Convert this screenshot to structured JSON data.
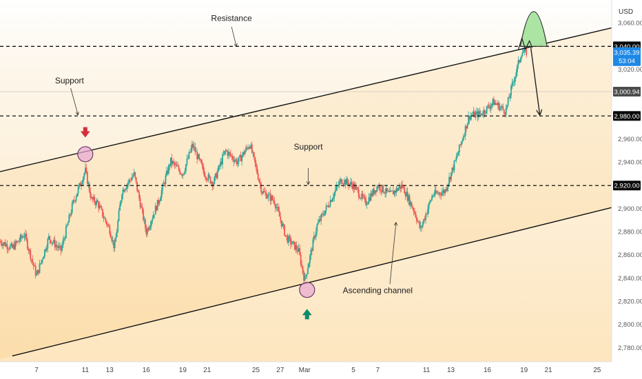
{
  "chart_data": {
    "type": "candlestick",
    "currency": "USD",
    "y_ticks": [
      3060,
      3020,
      2960,
      2940,
      2900,
      2880,
      2860,
      2840,
      2820,
      2800,
      2780
    ],
    "y_tick_labels": [
      "3,060.00",
      "3,020.00",
      "2,960.00",
      "2,940.00",
      "2,900.00",
      "2,880.00",
      "2,860.00",
      "2,840.00",
      "2,820.00",
      "2,800.00",
      "2,780.00"
    ],
    "x_ticks": [
      {
        "label": "7",
        "x": 3
      },
      {
        "label": "11",
        "x": 7
      },
      {
        "label": "13",
        "x": 9
      },
      {
        "label": "16",
        "x": 12
      },
      {
        "label": "19",
        "x": 15
      },
      {
        "label": "21",
        "x": 17
      },
      {
        "label": "25",
        "x": 21
      },
      {
        "label": "27",
        "x": 23
      },
      {
        "label": "Mar",
        "x": 25
      },
      {
        "label": "5",
        "x": 29
      },
      {
        "label": "7",
        "x": 31
      },
      {
        "label": "11",
        "x": 35
      },
      {
        "label": "13",
        "x": 37
      },
      {
        "label": "16",
        "x": 40
      },
      {
        "label": "19",
        "x": 43
      },
      {
        "label": "21",
        "x": 45
      },
      {
        "label": "25",
        "x": 49
      }
    ],
    "x_range": [
      0.0,
      50.2
    ],
    "y_range": [
      2768,
      3080
    ],
    "price_path": [
      [
        0.0,
        2872
      ],
      [
        1.0,
        2866
      ],
      [
        2.0,
        2878
      ],
      [
        3.0,
        2842
      ],
      [
        4.0,
        2875
      ],
      [
        5.0,
        2864
      ],
      [
        6.0,
        2905
      ],
      [
        7.0,
        2933
      ],
      [
        7.5,
        2908
      ],
      [
        8.0,
        2905
      ],
      [
        8.5,
        2893
      ],
      [
        9.0,
        2882
      ],
      [
        9.4,
        2866
      ],
      [
        10.0,
        2915
      ],
      [
        11.0,
        2930
      ],
      [
        12.0,
        2880
      ],
      [
        13.0,
        2906
      ],
      [
        14.0,
        2941
      ],
      [
        15.0,
        2930
      ],
      [
        15.8,
        2955
      ],
      [
        16.8,
        2930
      ],
      [
        17.5,
        2922
      ],
      [
        18.5,
        2950
      ],
      [
        19.5,
        2940
      ],
      [
        20.5,
        2956
      ],
      [
        21.5,
        2915
      ],
      [
        22.5,
        2907
      ],
      [
        23.5,
        2875
      ],
      [
        24.5,
        2864
      ],
      [
        25.0,
        2838
      ],
      [
        26.0,
        2885
      ],
      [
        27.0,
        2905
      ],
      [
        28.0,
        2925
      ],
      [
        29.0,
        2920
      ],
      [
        30.0,
        2905
      ],
      [
        31.0,
        2920
      ],
      [
        32.0,
        2912
      ],
      [
        33.0,
        2920
      ],
      [
        34.0,
        2898
      ],
      [
        34.5,
        2882
      ],
      [
        35.5,
        2912
      ],
      [
        36.5,
        2915
      ],
      [
        37.5,
        2945
      ],
      [
        38.5,
        2980
      ],
      [
        39.5,
        2982
      ],
      [
        40.5,
        2992
      ],
      [
        41.5,
        2984
      ],
      [
        42.0,
        3005
      ],
      [
        42.8,
        3035
      ],
      [
        43.2,
        3035
      ]
    ],
    "price_label": "3,035.39",
    "countdown": "53:04",
    "level_labels": [
      {
        "value": 3040,
        "text": "3,040.00"
      },
      {
        "value": 3000.94,
        "text": "3,000.94"
      },
      {
        "value": 2980,
        "text": "2,980.00"
      },
      {
        "value": 2920,
        "text": "2,920.00"
      }
    ],
    "horizontal_levels": [
      3040,
      2980,
      2920
    ],
    "reference_level": 3000.94,
    "channel": {
      "upper": [
        [
          0.0,
          2932
        ],
        [
          50.2,
          3056
        ]
      ],
      "lower": [
        [
          1.0,
          2773
        ],
        [
          50.2,
          2901
        ]
      ]
    },
    "projection": [
      [
        43.0,
        3040
      ],
      [
        44.3,
        2981
      ]
    ],
    "resistance_arc": {
      "from": [
        42.7,
        3040
      ],
      "to": [
        44.9,
        3040
      ],
      "peak": 3070
    },
    "touch_points": [
      [
        7.0,
        2947
      ],
      [
        25.2,
        2830
      ]
    ],
    "annotations": [
      {
        "text": "Resistance",
        "at": [
          19.0,
          3062
        ]
      },
      {
        "text": "Support",
        "at": [
          5.7,
          3008
        ]
      },
      {
        "text": "Support",
        "at": [
          25.3,
          2951
        ]
      },
      {
        "text": "Ascending channel",
        "at": [
          31.0,
          2827
        ]
      }
    ],
    "pointers": [
      {
        "from": [
          19.0,
          3057
        ],
        "to": [
          19.4,
          3040
        ]
      },
      {
        "from": [
          5.8,
          3004
        ],
        "to": [
          6.4,
          2981
        ]
      },
      {
        "from": [
          25.3,
          2935
        ],
        "to": [
          25.3,
          2921
        ]
      },
      {
        "from": [
          32.0,
          2835
        ],
        "to": [
          32.5,
          2888
        ]
      }
    ],
    "arrows": [
      {
        "direction": "down",
        "at": [
          7.0,
          2965
        ],
        "color": "#d32f3f"
      },
      {
        "direction": "up",
        "at": [
          25.2,
          2810
        ],
        "color": "#0f8a6a"
      }
    ]
  }
}
